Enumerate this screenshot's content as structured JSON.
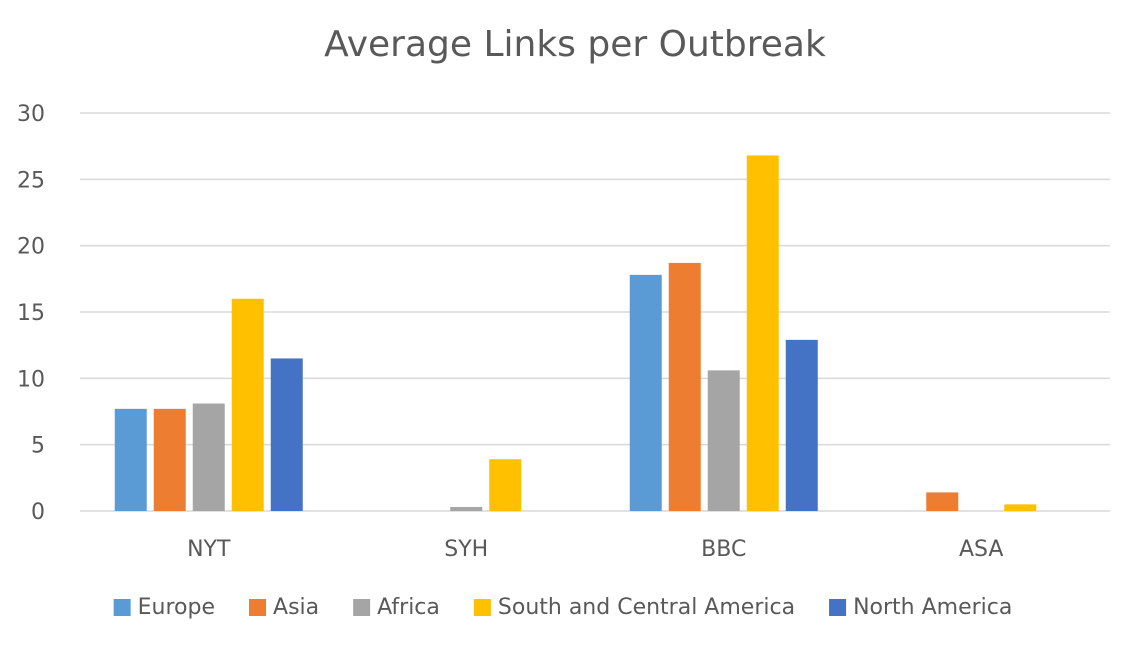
{
  "chart_data": {
    "type": "bar",
    "title": "Average Links per Outbreak",
    "xlabel": "",
    "ylabel": "",
    "categories": [
      "NYT",
      "SYH",
      "BBC",
      "ASA"
    ],
    "ylim": [
      0,
      30
    ],
    "yticks": [
      0,
      5,
      10,
      15,
      20,
      25,
      30
    ],
    "grid": true,
    "legend_position": "bottom",
    "series": [
      {
        "name": "Europe",
        "color": "#5B9BD5",
        "values": [
          7.7,
          0,
          17.8,
          0
        ]
      },
      {
        "name": "Asia",
        "color": "#ED7D31",
        "values": [
          7.7,
          0,
          18.7,
          1.4
        ]
      },
      {
        "name": "Africa",
        "color": "#A5A5A5",
        "values": [
          8.1,
          0.3,
          10.6,
          0
        ]
      },
      {
        "name": "South and Central America",
        "color": "#FFC000",
        "values": [
          16.0,
          3.9,
          26.8,
          0.5
        ]
      },
      {
        "name": "North America",
        "color": "#4472C4",
        "values": [
          11.5,
          0,
          12.9,
          0
        ]
      }
    ]
  }
}
